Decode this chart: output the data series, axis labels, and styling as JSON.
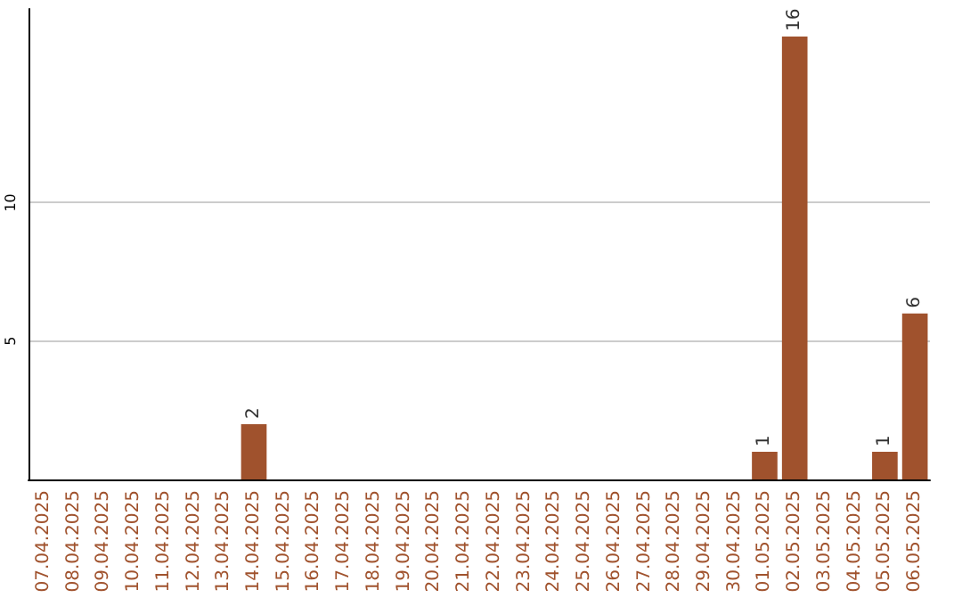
{
  "chart_data": {
    "type": "bar",
    "categories": [
      "07.04.2025",
      "08.04.2025",
      "09.04.2025",
      "10.04.2025",
      "11.04.2025",
      "12.04.2025",
      "13.04.2025",
      "14.04.2025",
      "15.04.2025",
      "16.04.2025",
      "17.04.2025",
      "18.04.2025",
      "19.04.2025",
      "20.04.2025",
      "21.04.2025",
      "22.04.2025",
      "23.04.2025",
      "24.04.2025",
      "25.04.2025",
      "26.04.2025",
      "27.04.2025",
      "28.04.2025",
      "29.04.2025",
      "30.04.2025",
      "01.05.2025",
      "02.05.2025",
      "03.05.2025",
      "04.05.2025",
      "05.05.2025",
      "06.05.2025"
    ],
    "values": [
      0,
      0,
      0,
      0,
      0,
      0,
      0,
      2,
      0,
      0,
      0,
      0,
      0,
      0,
      0,
      0,
      0,
      0,
      0,
      0,
      0,
      0,
      0,
      0,
      1,
      16,
      0,
      0,
      1,
      6
    ],
    "value_labels": [
      null,
      null,
      null,
      null,
      null,
      null,
      null,
      "2",
      null,
      null,
      null,
      null,
      null,
      null,
      null,
      null,
      null,
      null,
      null,
      null,
      null,
      null,
      null,
      null,
      "1",
      "16",
      null,
      null,
      "1",
      "6"
    ],
    "color": "#a0522d",
    "ylim": [
      0,
      17
    ],
    "yticks": [
      5,
      10
    ],
    "grid": "y"
  }
}
